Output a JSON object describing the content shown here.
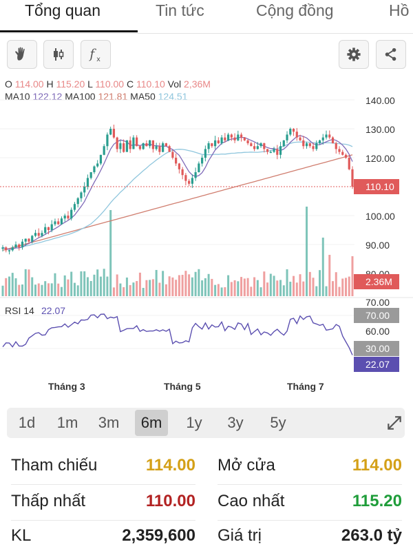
{
  "tabs": [
    "Tổng quan",
    "Tin tức",
    "Cộng đồng",
    "Hồ"
  ],
  "ohlc": {
    "o_label": "O",
    "o": "114.00",
    "h_label": "H",
    "h": "115.20",
    "l_label": "L",
    "l": "110.00",
    "c_label": "C",
    "c": "110.10",
    "vol_label": "Vol",
    "vol": "2,36M"
  },
  "ma": {
    "ma10_label": "MA10",
    "ma10": "122.12",
    "ma100_label": "MA100",
    "ma100": "121.81",
    "ma50_label": "MA50",
    "ma50": "124.51"
  },
  "toolbar": {
    "icons": [
      "hand-icon",
      "candlestick-icon",
      "function-icon",
      "gear-icon",
      "share-icon"
    ]
  },
  "chart_data": {
    "type": "candlestick",
    "price_ticks": [
      "140.00",
      "130.00",
      "120.00",
      "110.00",
      "100.00",
      "90.00"
    ],
    "last_price_label": "110.10",
    "last_price": 110.1,
    "volume_label": "2.36M",
    "volume_tick_partial": "80.00",
    "rsi_label": "RSI 14",
    "rsi_value": "22.07",
    "rsi_ticks": [
      "70.00",
      "70.00",
      "60.00",
      "30.00"
    ],
    "rsi_marker": "22.07",
    "x_labels": [
      "Tháng 3",
      "Tháng 5",
      "Tháng 7"
    ],
    "close": [
      89,
      88,
      88,
      89,
      90,
      89,
      91,
      92,
      91,
      93,
      94,
      93,
      94,
      96,
      95,
      97,
      98,
      97,
      99,
      100,
      99,
      102,
      104,
      106,
      108,
      110,
      113,
      115,
      117,
      118,
      121,
      124,
      128,
      130,
      127,
      123,
      125,
      122,
      126,
      123,
      127,
      124,
      123,
      125,
      124,
      126,
      123,
      124,
      122,
      125,
      124,
      122,
      120,
      118,
      116,
      114,
      112,
      111,
      113,
      115,
      118,
      120,
      123,
      125,
      124,
      126,
      125,
      127,
      126,
      128,
      127,
      126,
      128,
      127,
      126,
      125,
      124,
      123,
      124,
      125,
      123,
      122,
      122,
      123,
      121,
      124,
      126,
      128,
      130,
      129,
      127,
      126,
      124,
      125,
      124,
      123,
      125,
      126,
      127,
      128,
      127,
      125,
      123,
      122,
      121,
      120,
      116,
      110
    ]
  },
  "periods": [
    "1d",
    "1m",
    "3m",
    "6m",
    "1y",
    "3y",
    "5y"
  ],
  "active_period": "6m",
  "stats": {
    "ref_label": "Tham chiếu",
    "ref_value": "114.00",
    "open_label": "Mở cửa",
    "open_value": "114.00",
    "low_label": "Thấp nhất",
    "low_value": "110.00",
    "high_label": "Cao nhất",
    "high_value": "115.20",
    "vol_label": "KL",
    "vol_value": "2,359,600",
    "value_label": "Giá trị",
    "value_value": "263.0 tỷ"
  },
  "colors": {
    "up": "#2a9d8f",
    "down": "#e05a5a",
    "ma10": "#7f6ab8",
    "ma50": "#8fc6dd",
    "ma100": "#d07d6e",
    "rsi": "#5b4fb0",
    "ref": "#d4a017",
    "low": "#b22222",
    "high": "#1f9d3a"
  }
}
